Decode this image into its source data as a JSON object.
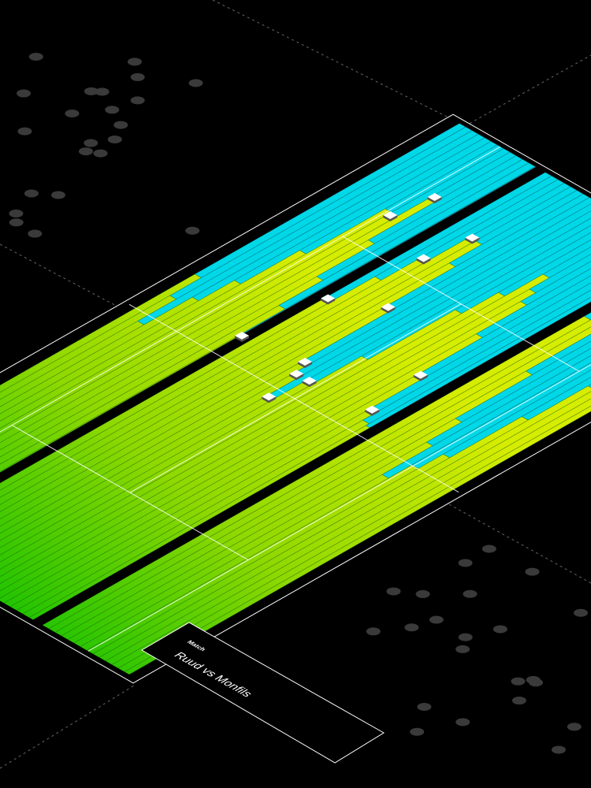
{
  "panel": {
    "label": "Match",
    "title": "Ruud vs Monfils"
  }
}
